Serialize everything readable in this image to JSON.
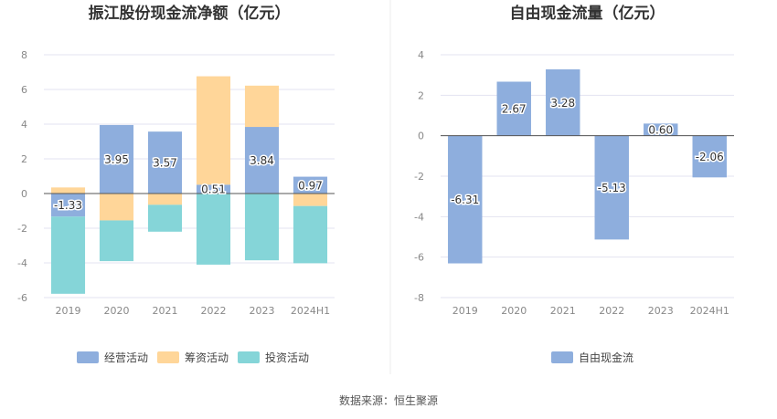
{
  "footer": {
    "source": "数据来源：恒生聚源"
  },
  "chart_data": [
    {
      "type": "bar",
      "stacked": true,
      "title": "振江股份现金流净额（亿元）",
      "categories": [
        "2019",
        "2020",
        "2021",
        "2022",
        "2023",
        "2024H1"
      ],
      "ylim": [
        -6,
        8
      ],
      "yticks": [
        -6,
        -4,
        -2,
        0,
        2,
        4,
        6,
        8
      ],
      "grid": true,
      "legend_position": "bottom",
      "series": [
        {
          "name": "经营活动",
          "color": "#8eaedd",
          "values": [
            -1.33,
            3.95,
            3.57,
            0.51,
            3.84,
            0.97
          ],
          "labels": [
            "-1.33",
            "3.95",
            "3.57",
            "0.51",
            "3.84",
            "0.97"
          ]
        },
        {
          "name": "筹资活动",
          "color": "#ffd699",
          "values": [
            0.35,
            -1.55,
            -0.65,
            6.25,
            2.38,
            -0.72
          ]
        },
        {
          "name": "投资活动",
          "color": "#85d5d8",
          "values": [
            -4.45,
            -2.35,
            -1.55,
            -4.1,
            -3.85,
            -3.3
          ]
        }
      ]
    },
    {
      "type": "bar",
      "title": "自由现金流量（亿元）",
      "categories": [
        "2019",
        "2020",
        "2021",
        "2022",
        "2023",
        "2024H1"
      ],
      "ylim": [
        -8,
        4
      ],
      "yticks": [
        -8,
        -6,
        -4,
        -2,
        0,
        2,
        4
      ],
      "grid": true,
      "legend_position": "bottom",
      "series": [
        {
          "name": "自由现金流",
          "color": "#8eaedd",
          "values": [
            -6.31,
            2.67,
            3.28,
            -5.13,
            0.6,
            -2.06
          ],
          "labels": [
            "-6.31",
            "2.67",
            "3.28",
            "-5.13",
            "0.60",
            "-2.06"
          ]
        }
      ]
    }
  ]
}
